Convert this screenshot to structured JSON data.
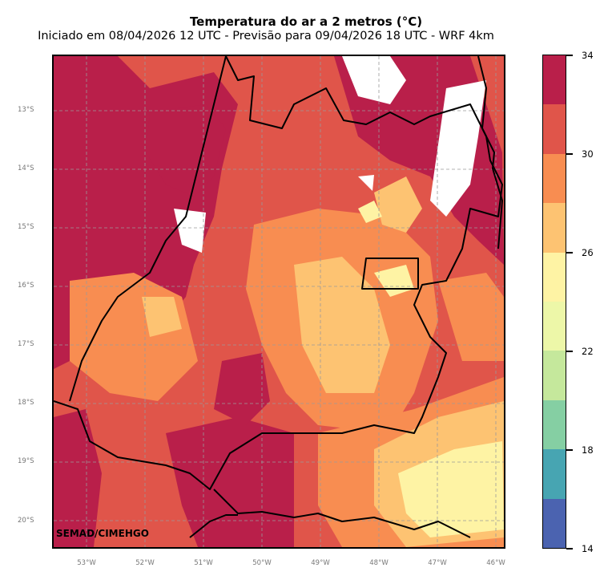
{
  "title": "Temperatura do ar a 2 metros (°C)",
  "subtitle": "Iniciado em 08/04/2026 12 UTC - Previsão para 09/04/2026 18 UTC - WRF 4km",
  "credit": "SEMAD/CIMEHGO",
  "map": {
    "lon_ticks": [
      "53°W",
      "52°W",
      "51°W",
      "50°W",
      "49°W",
      "48°W",
      "47°W",
      "46°W"
    ],
    "lat_ticks": [
      "13°S",
      "14°S",
      "15°S",
      "16°S",
      "17°S",
      "18°S",
      "19°S",
      "20°S"
    ],
    "lon_range": [
      -53.8,
      -46.15
    ],
    "lat_range": [
      -20.45,
      -12.05
    ],
    "gridlines": true,
    "fill_colors_by_level": {
      "very_hot_32_34": "#b91f4a",
      "hot_30_32": "#e0554a",
      "warm_28_30": "#f88d51",
      "mild_26_28": "#fdc372",
      "cool_24_26": "#fef3a4",
      "missing": "#ffffff"
    }
  },
  "colorbar": {
    "min": 14,
    "max": 34,
    "tick_labels": [
      "14",
      "18",
      "22",
      "26",
      "30",
      "34"
    ],
    "levels": [
      14,
      16,
      18,
      20,
      22,
      24,
      26,
      28,
      30,
      32,
      34
    ],
    "colors": [
      "#4b63b0",
      "#47a5b2",
      "#85cfa3",
      "#c5e89c",
      "#edf7a8",
      "#fef3a4",
      "#fdc372",
      "#f88d51",
      "#e0554a",
      "#b91f4a"
    ]
  }
}
